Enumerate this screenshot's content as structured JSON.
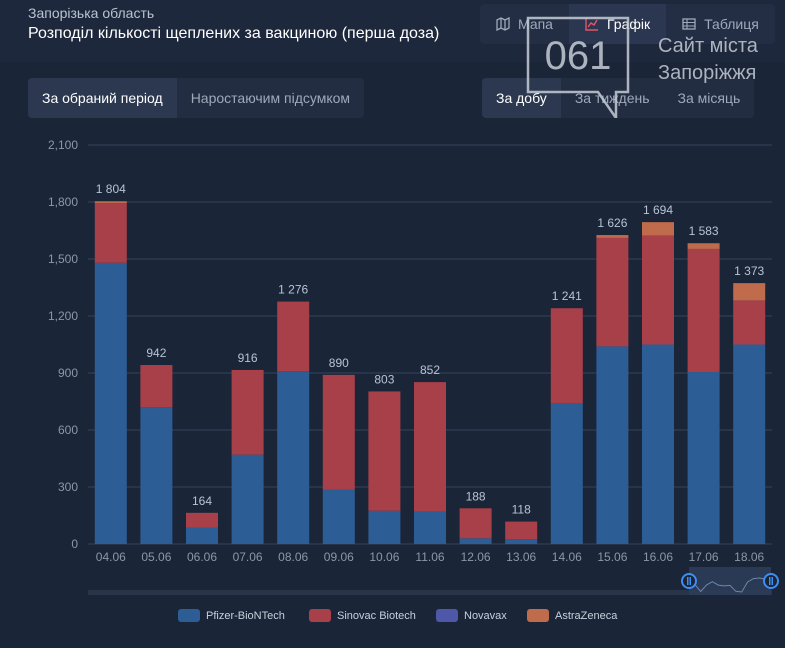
{
  "header": {
    "region": "Запорізька область",
    "title": "Розподіл кількості щеплених за вакциною (перша доза)"
  },
  "view_tabs": [
    {
      "label": "Мапа",
      "icon": "map-icon",
      "active": false
    },
    {
      "label": "Графік",
      "icon": "chart-icon",
      "active": true
    },
    {
      "label": "Таблиця",
      "icon": "table-icon",
      "active": false
    }
  ],
  "mode_tabs": [
    {
      "label": "За обраний період",
      "active": true
    },
    {
      "label": "Наростаючим підсумком",
      "active": false
    }
  ],
  "period_tabs": [
    {
      "label": "За добу",
      "active": true
    },
    {
      "label": "За тиждень",
      "active": false
    },
    {
      "label": "За місяць",
      "active": false
    }
  ],
  "watermark": {
    "logo_text": "061",
    "line1": "Сайт міста",
    "line2": "Запоріжжя"
  },
  "colors": {
    "pfizer": "#2d5d95",
    "sinovac": "#a8404a",
    "novavax": "#4e57a8",
    "astrazeneca": "#bf6b4c",
    "grid": "#35425a",
    "axis_text": "#8c97a9",
    "label_text": "#b7c4d6"
  },
  "chart_data": {
    "type": "bar",
    "stacked": true,
    "categories": [
      "04.06",
      "05.06",
      "06.06",
      "07.06",
      "08.06",
      "09.06",
      "10.06",
      "11.06",
      "12.06",
      "13.06",
      "14.06",
      "15.06",
      "16.06",
      "17.06",
      "18.06"
    ],
    "series": [
      {
        "name": "Pfizer-BioNTech",
        "color_key": "pfizer",
        "values": [
          1480,
          720,
          85,
          470,
          910,
          285,
          175,
          170,
          30,
          25,
          740,
          1040,
          1050,
          905,
          1050
        ]
      },
      {
        "name": "Sinovac Biotech",
        "color_key": "sinovac",
        "values": [
          314,
          222,
          79,
          446,
          366,
          605,
          628,
          682,
          158,
          93,
          501,
          571,
          574,
          648,
          232
        ]
      },
      {
        "name": "Novavax",
        "color_key": "novavax",
        "values": [
          0,
          0,
          0,
          0,
          0,
          0,
          0,
          0,
          0,
          0,
          0,
          0,
          0,
          0,
          0
        ]
      },
      {
        "name": "AstraZeneca",
        "color_key": "astrazeneca",
        "values": [
          10,
          0,
          0,
          0,
          0,
          0,
          0,
          0,
          0,
          0,
          0,
          15,
          70,
          30,
          91
        ]
      }
    ],
    "totals": [
      1804,
      942,
      164,
      916,
      1276,
      890,
      803,
      852,
      188,
      118,
      1241,
      1626,
      1694,
      1583,
      1373
    ],
    "total_labels": [
      "1 804",
      "942",
      "164",
      "916",
      "1 276",
      "890",
      "803",
      "852",
      "188",
      "118",
      "1 241",
      "1 626",
      "1 694",
      "1 583",
      "1 373"
    ],
    "y_ticks": [
      0,
      300,
      600,
      900,
      1200,
      1500,
      1800,
      2100
    ],
    "y_tick_labels": [
      "0",
      "300",
      "600",
      "900",
      "1,200",
      "1,500",
      "1,800",
      "2,100"
    ],
    "ylim": [
      0,
      2100
    ],
    "legend_position": "bottom",
    "title": "",
    "xlabel": "",
    "ylabel": ""
  }
}
